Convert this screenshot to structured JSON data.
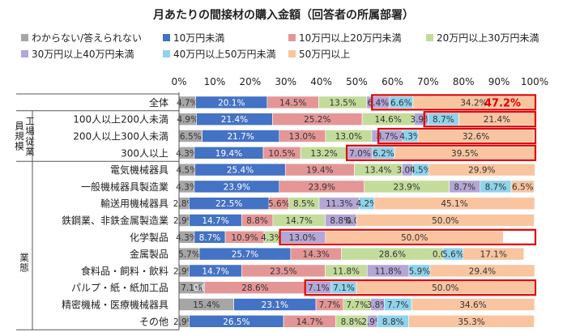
{
  "chart_data": {
    "type": "bar",
    "orientation": "horizontal",
    "stacked": true,
    "title": "月あたりの間接材の購入金額（回答者の所属部署）",
    "xlim": [
      0,
      100
    ],
    "xticks": [
      "0%",
      "10%",
      "20%",
      "30%",
      "40%",
      "50%",
      "60%",
      "70%",
      "80%",
      "90%",
      "100%"
    ],
    "legend_position": "top",
    "group_labels": [
      {
        "label": "工場従業員規模",
        "rows": [
          1,
          4
        ]
      },
      {
        "label": "業態",
        "rows": [
          5,
          15
        ]
      }
    ],
    "categories": [
      "全体",
      "100人以上200人未満",
      "200人以上300人未満",
      "300人以上",
      "電気機械器具",
      "一般機械器具製造業",
      "輸送用機械器具",
      "鉄鋼業、非鉄金属製造業",
      "化学製品",
      "金属製品",
      "食料品・飼料・飲料",
      "パルプ・紙・紙加工品",
      "精密機械・医療機械器具",
      "その他"
    ],
    "series": [
      {
        "name": "わからない/答えられない",
        "color": "#a6a6a6",
        "values": [
          4.7,
          4.9,
          6.5,
          4.3,
          4.5,
          4.3,
          2.8,
          2.9,
          4.3,
          5.7,
          2.9,
          7.1,
          15.4,
          2.9
        ]
      },
      {
        "name": "10万円未満",
        "color": "#4472c4",
        "values": [
          20.1,
          21.4,
          21.7,
          19.4,
          25.4,
          23.9,
          22.5,
          14.7,
          8.7,
          25.7,
          14.7,
          0.0,
          23.1,
          26.5
        ]
      },
      {
        "name": "10万円以上20万円未満",
        "color": "#e49696",
        "values": [
          14.5,
          25.2,
          13.0,
          10.5,
          19.4,
          23.9,
          5.6,
          8.8,
          10.9,
          14.3,
          23.5,
          28.6,
          7.7,
          14.7
        ]
      },
      {
        "name": "20万円以上30万円未満",
        "color": "#c3dc9b",
        "values": [
          13.5,
          14.6,
          13.0,
          13.2,
          13.4,
          23.9,
          8.5,
          14.7,
          4.3,
          28.6,
          11.8,
          0.0,
          7.7,
          8.8
        ]
      },
      {
        "name": "30万円以上40万円未満",
        "color": "#b4a7d6",
        "values": [
          6.4,
          3.9,
          8.7,
          7.0,
          3.0,
          8.7,
          11.3,
          8.8,
          13.0,
          0.0,
          11.8,
          7.1,
          3.8,
          2.9
        ]
      },
      {
        "name": "40万円以上50万円未満",
        "color": "#8fd3ec",
        "values": [
          6.6,
          8.7,
          4.3,
          6.2,
          4.5,
          8.7,
          4.2,
          0.0,
          0.0,
          5.6,
          5.9,
          7.1,
          7.7,
          8.8
        ]
      },
      {
        "name": "50万円以上",
        "color": "#f8c5a0",
        "values": [
          34.2,
          21.4,
          32.6,
          39.5,
          29.9,
          6.5,
          45.1,
          50.0,
          50.0,
          17.1,
          29.4,
          50.0,
          34.6,
          35.3
        ]
      }
    ],
    "value_labels": [
      [
        "4.7%",
        "20.1%",
        "14.5%",
        "13.5%",
        "6.4%",
        "6.6%",
        "34.2%"
      ],
      [
        "4.9%",
        "21.4%",
        "25.2%",
        "14.6%",
        "3.9%",
        "8.7%",
        "21.4%"
      ],
      [
        "6.5%",
        "21.7%",
        "13.0%",
        "13.0%",
        "8.7%",
        "4.3%",
        "32.6%"
      ],
      [
        "4.3%",
        "19.4%",
        "10.5%",
        "13.2%",
        "7.0%",
        "6.2%",
        "39.5%"
      ],
      [
        "4.5%",
        "25.4%",
        "19.4%",
        "13.4%",
        "3.0%",
        "4.5%",
        "29.9%"
      ],
      [
        "4.3%",
        "23.9%",
        "23.9%",
        "23.9%",
        "8.7%",
        "8.7%",
        "6.5%"
      ],
      [
        "2.8%",
        "22.5%",
        "5.6%",
        "8.5%",
        "11.3%",
        "4.2%",
        "45.1%"
      ],
      [
        "2.9%",
        "14.7%",
        "8.8%",
        "14.7%",
        "8.8%",
        "0.0%",
        "50.0%"
      ],
      [
        "4.3%",
        "8.7%",
        "10.9%",
        "4.3%",
        "13.0%",
        "",
        "50.0%"
      ],
      [
        "5.7%",
        "25.7%",
        "14.3%",
        "28.6%",
        "0.0%",
        "5.6%",
        "17.1%"
      ],
      [
        "2.9%",
        "14.7%",
        "23.5%",
        "11.8%",
        "11.8%",
        "5.9%",
        "29.4%"
      ],
      [
        "7.1%",
        "0.0%",
        "28.6%",
        "",
        "7.1%",
        "7.1%",
        "50.0%"
      ],
      [
        "15.4%",
        "23.1%",
        "7.7%",
        "7.7%",
        "3.8%",
        "7.7%",
        "34.6%"
      ],
      [
        "2.9%",
        "26.5%",
        "14.7%",
        "8.8%",
        "2.9%",
        "8.8%",
        "35.3%"
      ]
    ],
    "annotation": {
      "text": "47.2%",
      "color": "#e00000"
    },
    "highlight_color": "#e00000",
    "highlights": [
      {
        "row": 0,
        "from": 54.5,
        "to": 100
      },
      {
        "row": 1,
        "from": 69.2,
        "to": 100
      },
      {
        "row": 2,
        "from": 56.3,
        "to": 100
      },
      {
        "row": 3,
        "from": 47.4,
        "to": 100
      },
      {
        "row": 8,
        "from": 28.6,
        "to": 100
      },
      {
        "row": 11,
        "from": 35.7,
        "to": 100
      }
    ]
  }
}
